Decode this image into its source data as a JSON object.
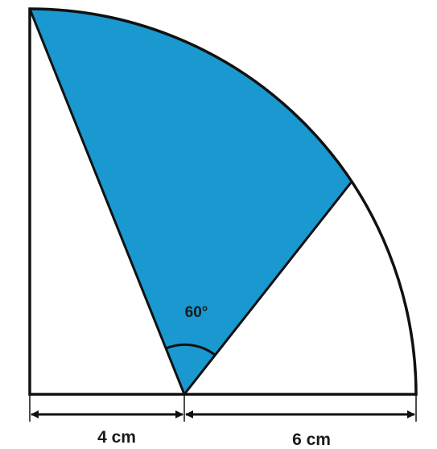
{
  "diagram": {
    "angle_label": "60°",
    "left_dimension_label": "4 cm",
    "right_dimension_label": "6 cm",
    "colors": {
      "shaded_region": "#1a98d0",
      "outline": "#111111",
      "background": "#ffffff"
    }
  }
}
